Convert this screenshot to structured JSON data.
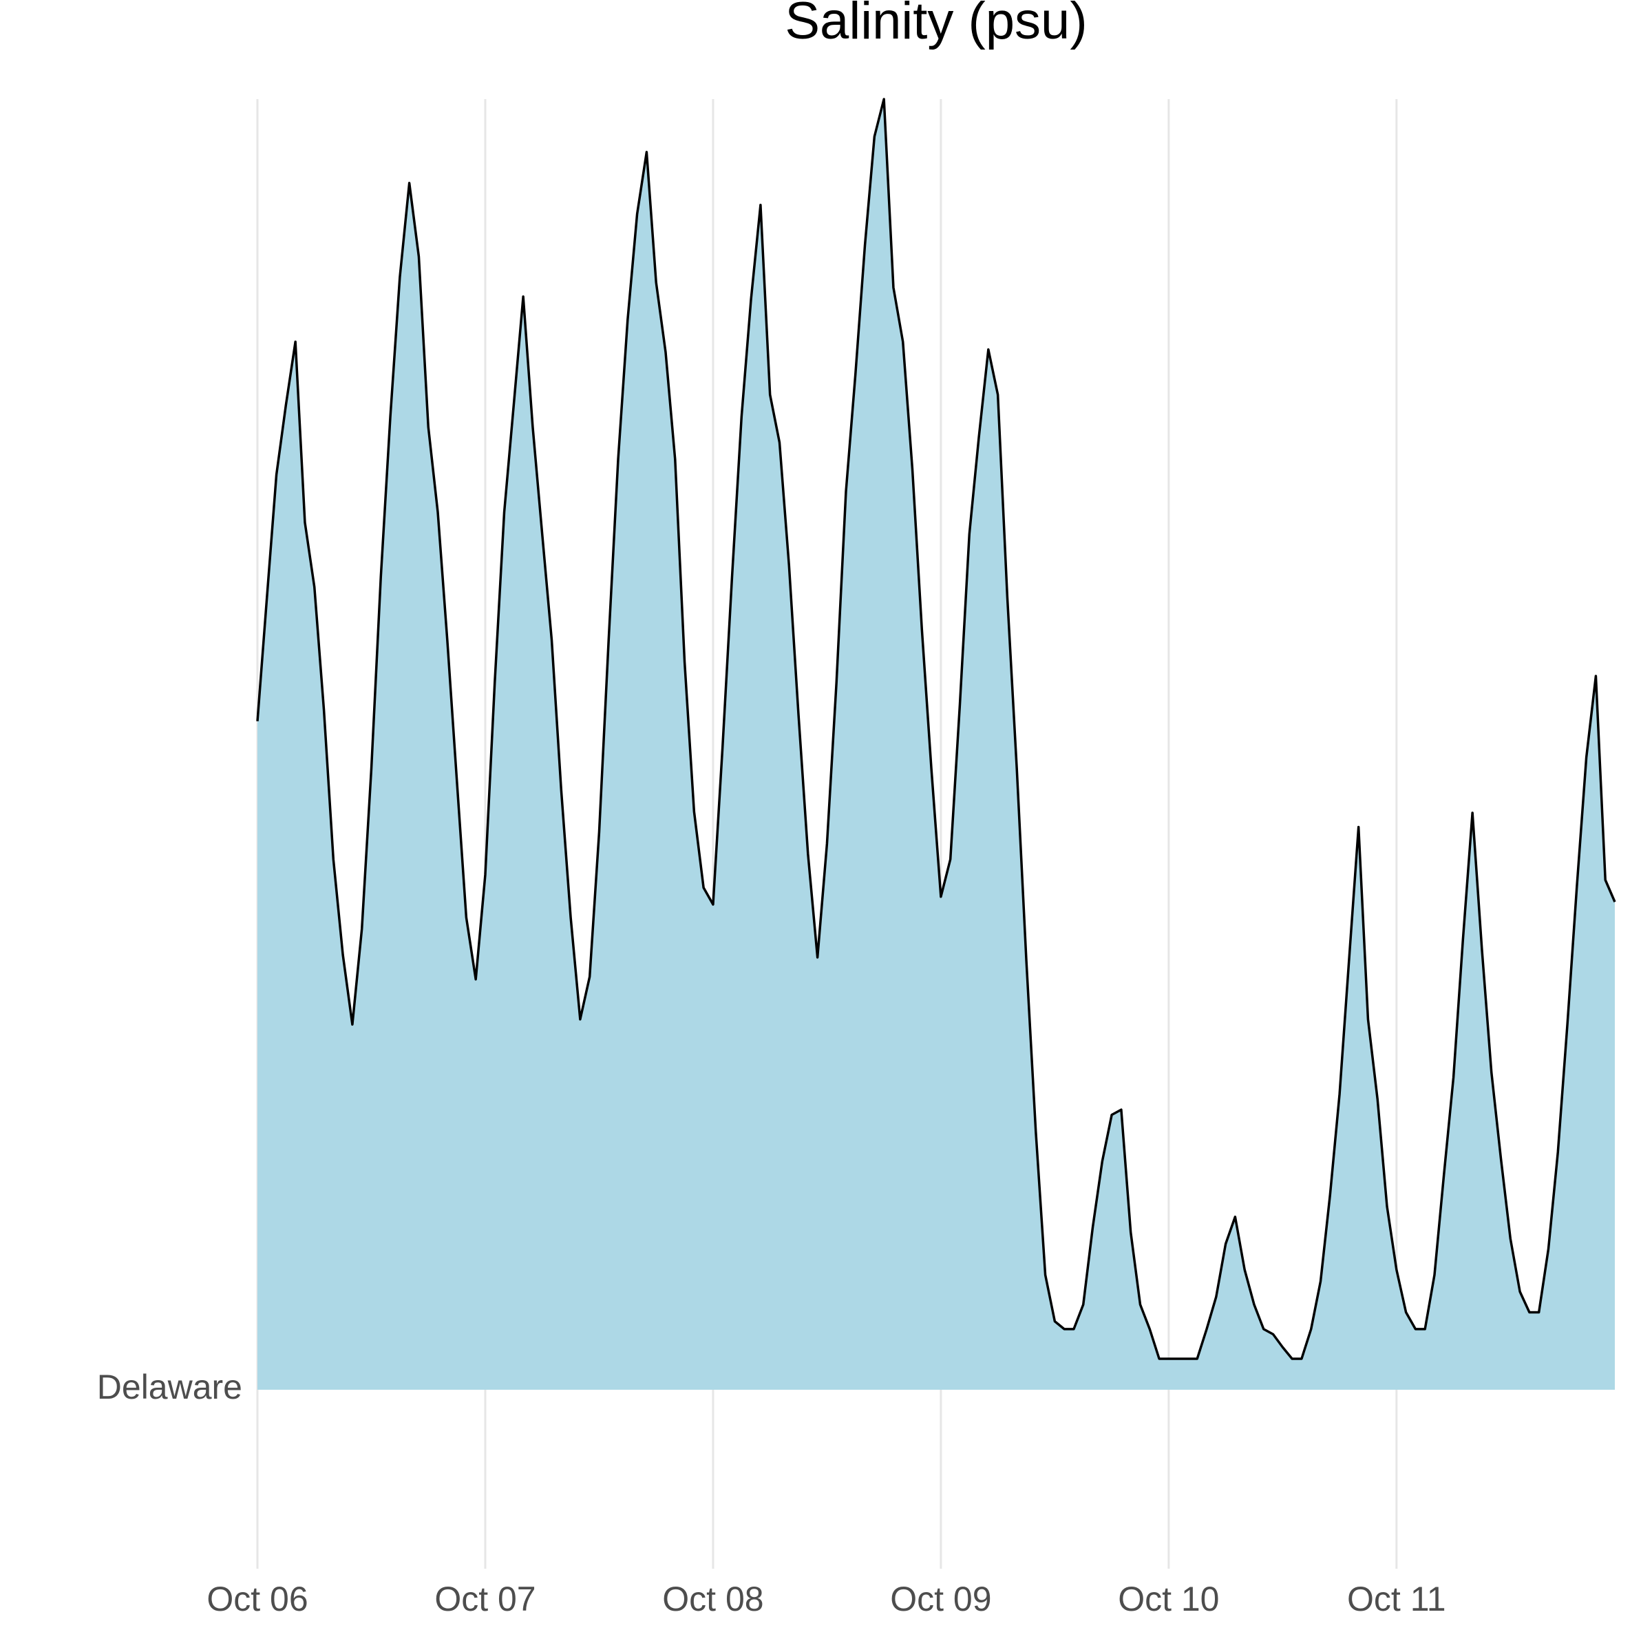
{
  "chart_data": {
    "type": "ridgeline",
    "title": "Salinity (psu)",
    "x": [
      0,
      1,
      2,
      3,
      4,
      5,
      6,
      7,
      8,
      9,
      10,
      11,
      12,
      13,
      14,
      15,
      16,
      17,
      18,
      19,
      20,
      21,
      22,
      23,
      24,
      25,
      26,
      27,
      28,
      29,
      30,
      31,
      32,
      33,
      34,
      35,
      36,
      37,
      38,
      39,
      40,
      41,
      42,
      43,
      44,
      45,
      46,
      47,
      48,
      49,
      50,
      51,
      52,
      53,
      54,
      55,
      56,
      57,
      58,
      59,
      60,
      61,
      62,
      63,
      64,
      65,
      66,
      67,
      68,
      69,
      70,
      71,
      72,
      73,
      74,
      75,
      76,
      77,
      78,
      79,
      80,
      81,
      82,
      83,
      84,
      85,
      86,
      87,
      88,
      89,
      90,
      91,
      92,
      93,
      94,
      95,
      96,
      97,
      98,
      99,
      100,
      101,
      102,
      103,
      104,
      105,
      106,
      107,
      108,
      109,
      110,
      111,
      112,
      113,
      114,
      115,
      116,
      117,
      118,
      119,
      120,
      121,
      122,
      123,
      124,
      125,
      126,
      127,
      128,
      129,
      130,
      131,
      132,
      133,
      134,
      135,
      136,
      137,
      138,
      139,
      140,
      141,
      142,
      143
    ],
    "series": [
      {
        "name": "Delaware",
        "color": "#add8e6",
        "line_color": "#000000",
        "values": [
          51.8,
          61.4,
          70.9,
          76.3,
          81.2,
          67.2,
          62.2,
          52.7,
          41.1,
          33.7,
          28.3,
          35.7,
          48.1,
          63.0,
          75.4,
          86.2,
          93.5,
          87.8,
          74.6,
          68.0,
          58.1,
          47.3,
          36.6,
          31.8,
          39.9,
          54.8,
          68.0,
          76.3,
          84.7,
          74.6,
          66.3,
          58.1,
          46.5,
          36.6,
          28.7,
          32.0,
          43.2,
          58.1,
          72.1,
          82.9,
          91.1,
          95.9,
          85.8,
          80.4,
          72.1,
          56.4,
          44.8,
          38.9,
          37.6,
          49.8,
          63.0,
          75.4,
          84.5,
          91.8,
          77.1,
          73.4,
          63.9,
          52.3,
          41.5,
          33.5,
          42.3,
          54.8,
          69.6,
          78.7,
          88.7,
          97.1,
          100,
          85.4,
          81.2,
          71.3,
          58.9,
          48.1,
          38.2,
          41.1,
          53.1,
          66.3,
          73.8,
          80.6,
          77.1,
          61.4,
          48.1,
          33.3,
          20.0,
          8.9,
          5.3,
          4.7,
          4.7,
          6.6,
          12.6,
          17.7,
          21.3,
          21.7,
          12.2,
          6.6,
          4.7,
          2.4,
          2.4,
          2.4,
          2.4,
          2.4,
          4.7,
          7.2,
          11.3,
          13.4,
          9.3,
          6.6,
          4.7,
          4.3,
          3.3,
          2.4,
          2.4,
          4.7,
          8.4,
          15.1,
          22.9,
          33.3,
          43.6,
          28.7,
          22.5,
          14.2,
          9.3,
          6.0,
          4.7,
          4.7,
          8.9,
          16.7,
          24.2,
          34.9,
          44.7,
          34.1,
          24.6,
          17.9,
          11.7,
          7.6,
          6.0,
          6.0,
          10.9,
          18.4,
          28.3,
          39.0,
          49.0,
          55.3,
          39.5,
          37.8
        ]
      }
    ],
    "xlim": [
      0,
      143
    ],
    "xticks": [
      {
        "value": 0,
        "label": "Oct 06"
      },
      {
        "value": 24,
        "label": "Oct 07"
      },
      {
        "value": 48,
        "label": "Oct 08"
      },
      {
        "value": 72,
        "label": "Oct 09"
      },
      {
        "value": 96,
        "label": "Oct 10"
      },
      {
        "value": 120,
        "label": "Oct 11"
      }
    ],
    "grid": true
  }
}
